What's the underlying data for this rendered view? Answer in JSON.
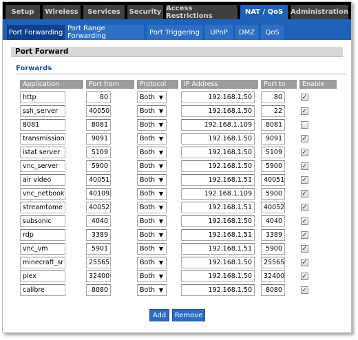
{
  "top_tabs": [
    "Setup",
    "Wireless",
    "Services",
    "Security",
    "Access Restrictions",
    "NAT / QoS",
    "Administration"
  ],
  "active_top_tab": "NAT / QoS",
  "sub_tabs": [
    "Port Forwarding",
    "Port Range Forwarding",
    "Port Triggering",
    "UPnP",
    "DMZ",
    "QoS"
  ],
  "active_sub_tab": "Port Forwarding",
  "section_title": "Port Forward",
  "legend": "Forwards",
  "columns": [
    "Application",
    "Port from",
    "Protocol",
    "IP Address",
    "Port to",
    "Enable"
  ],
  "rows": [
    {
      "app": "http",
      "port_from": "80",
      "protocol": "Both",
      "ip": "192.168.1.50",
      "port_to": "80",
      "enabled": true
    },
    {
      "app": "ssh_server",
      "port_from": "40050",
      "protocol": "Both",
      "ip": "192.168.1.50",
      "port_to": "22",
      "enabled": true
    },
    {
      "app": "8081",
      "port_from": "8081",
      "protocol": "Both",
      "ip": "192.168.1.109",
      "port_to": "8081",
      "enabled": false
    },
    {
      "app": "transmission",
      "port_from": "9091",
      "protocol": "Both",
      "ip": "192.168.1.50",
      "port_to": "9091",
      "enabled": true
    },
    {
      "app": "istat server",
      "port_from": "5109",
      "protocol": "Both",
      "ip": "192.168.1.50",
      "port_to": "5109",
      "enabled": true
    },
    {
      "app": "vnc_server",
      "port_from": "5900",
      "protocol": "Both",
      "ip": "192.168.1.50",
      "port_to": "5900",
      "enabled": true
    },
    {
      "app": "air video",
      "port_from": "40051",
      "protocol": "Both",
      "ip": "192.168.1.51",
      "port_to": "40051",
      "enabled": true
    },
    {
      "app": "vnc_netbook",
      "port_from": "40109",
      "protocol": "Both",
      "ip": "192.168.1.109",
      "port_to": "5900",
      "enabled": true
    },
    {
      "app": "streamtome",
      "port_from": "40052",
      "protocol": "Both",
      "ip": "192.168.1.51",
      "port_to": "40052",
      "enabled": true
    },
    {
      "app": "subsonic",
      "port_from": "4040",
      "protocol": "Both",
      "ip": "192.168.1.50",
      "port_to": "4040",
      "enabled": true
    },
    {
      "app": "rdp",
      "port_from": "3389",
      "protocol": "Both",
      "ip": "192.168.1.51",
      "port_to": "3389",
      "enabled": true
    },
    {
      "app": "vnc_vm",
      "port_from": "5901",
      "protocol": "Both",
      "ip": "192.168.1.51",
      "port_to": "5900",
      "enabled": true
    },
    {
      "app": "minecraft_sr",
      "port_from": "25565",
      "protocol": "Both",
      "ip": "192.168.1.50",
      "port_to": "25565",
      "enabled": true
    },
    {
      "app": "plex",
      "port_from": "32400",
      "protocol": "Both",
      "ip": "192.168.1.50",
      "port_to": "32400",
      "enabled": true
    },
    {
      "app": "calibre",
      "port_from": "8080",
      "protocol": "Both",
      "ip": "192.168.1.50",
      "port_to": "8080",
      "enabled": true
    }
  ],
  "buttons": {
    "add": "Add",
    "remove": "Remove"
  },
  "icons": {
    "dropdown": "chevron-down-icon",
    "checkbox_checked": "check-icon"
  },
  "colors": {
    "accent": "#1e62b8",
    "header_gray": "#9c9c9c",
    "legend_blue": "#1e4f9c"
  }
}
